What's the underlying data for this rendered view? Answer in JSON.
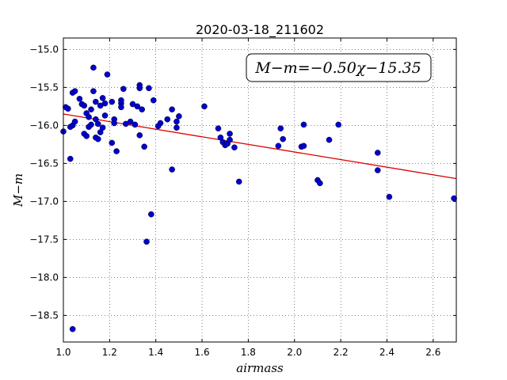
{
  "chart_data": {
    "type": "scatter",
    "title": "2020-03-18_211602",
    "xlabel": "airmass",
    "ylabel": "M−m",
    "annotation": "M−m=−0.50χ−15.35",
    "xlim": [
      1.0,
      2.7
    ],
    "ylim": [
      -18.85,
      -14.85
    ],
    "y_inverted": true,
    "grid": true,
    "x_ticks": [
      1.0,
      1.2,
      1.4,
      1.6,
      1.8,
      2.0,
      2.2,
      2.4,
      2.6
    ],
    "x_tick_labels": [
      "1.0",
      "1.2",
      "1.4",
      "1.6",
      "1.8",
      "2.0",
      "2.2",
      "2.4",
      "2.6"
    ],
    "y_ticks": [
      -15.0,
      -15.5,
      -16.0,
      -16.5,
      -17.0,
      -17.5,
      -18.0,
      -18.5
    ],
    "y_tick_labels": [
      "−15.0",
      "−15.5",
      "−16.0",
      "−16.5",
      "−17.0",
      "−17.5",
      "−18.0",
      "−18.5"
    ],
    "colors": {
      "points": "#0000cc",
      "fit": "#dd0000"
    },
    "fit": {
      "slope": -0.5,
      "intercept": -15.35
    },
    "points": [
      [
        1.0,
        -16.08
      ],
      [
        1.01,
        -15.76
      ],
      [
        1.02,
        -15.78
      ],
      [
        1.03,
        -16.02
      ],
      [
        1.03,
        -16.44
      ],
      [
        1.04,
        -16.0
      ],
      [
        1.04,
        -15.57
      ],
      [
        1.04,
        -18.68
      ],
      [
        1.05,
        -15.55
      ],
      [
        1.05,
        -15.95
      ],
      [
        1.07,
        -15.65
      ],
      [
        1.08,
        -15.72
      ],
      [
        1.09,
        -15.74
      ],
      [
        1.09,
        -16.11
      ],
      [
        1.1,
        -15.84
      ],
      [
        1.1,
        -16.14
      ],
      [
        1.11,
        -15.89
      ],
      [
        1.11,
        -16.02
      ],
      [
        1.12,
        -15.99
      ],
      [
        1.12,
        -15.79
      ],
      [
        1.13,
        -15.55
      ],
      [
        1.13,
        -15.24
      ],
      [
        1.14,
        -15.69
      ],
      [
        1.14,
        -16.16
      ],
      [
        1.14,
        -15.92
      ],
      [
        1.15,
        -15.98
      ],
      [
        1.15,
        -16.18
      ],
      [
        1.16,
        -16.09
      ],
      [
        1.16,
        -15.74
      ],
      [
        1.17,
        -15.64
      ],
      [
        1.17,
        -16.03
      ],
      [
        1.18,
        -15.87
      ],
      [
        1.18,
        -15.71
      ],
      [
        1.19,
        -15.33
      ],
      [
        1.21,
        -16.23
      ],
      [
        1.21,
        -15.69
      ],
      [
        1.22,
        -15.92
      ],
      [
        1.22,
        -15.97
      ],
      [
        1.23,
        -16.34
      ],
      [
        1.25,
        -15.71
      ],
      [
        1.25,
        -15.67
      ],
      [
        1.25,
        -15.76
      ],
      [
        1.26,
        -15.52
      ],
      [
        1.27,
        -15.98
      ],
      [
        1.29,
        -15.95
      ],
      [
        1.3,
        -15.72
      ],
      [
        1.31,
        -15.99
      ],
      [
        1.32,
        -15.75
      ],
      [
        1.33,
        -15.47
      ],
      [
        1.33,
        -15.51
      ],
      [
        1.33,
        -16.13
      ],
      [
        1.34,
        -15.79
      ],
      [
        1.35,
        -16.28
      ],
      [
        1.36,
        -17.53
      ],
      [
        1.37,
        -15.51
      ],
      [
        1.38,
        -17.17
      ],
      [
        1.39,
        -15.67
      ],
      [
        1.41,
        -16.01
      ],
      [
        1.42,
        -15.97
      ],
      [
        1.45,
        -15.92
      ],
      [
        1.47,
        -15.79
      ],
      [
        1.47,
        -16.58
      ],
      [
        1.49,
        -15.95
      ],
      [
        1.49,
        -16.03
      ],
      [
        1.5,
        -15.88
      ],
      [
        1.61,
        -15.75
      ],
      [
        1.67,
        -16.04
      ],
      [
        1.68,
        -16.16
      ],
      [
        1.69,
        -16.22
      ],
      [
        1.7,
        -16.26
      ],
      [
        1.71,
        -16.24
      ],
      [
        1.72,
        -16.11
      ],
      [
        1.72,
        -16.19
      ],
      [
        1.74,
        -16.29
      ],
      [
        1.76,
        -16.74
      ],
      [
        1.93,
        -16.27
      ],
      [
        1.94,
        -16.04
      ],
      [
        1.95,
        -16.18
      ],
      [
        2.03,
        -16.28
      ],
      [
        2.04,
        -15.99
      ],
      [
        2.04,
        -16.27
      ],
      [
        2.1,
        -16.72
      ],
      [
        2.11,
        -16.76
      ],
      [
        2.15,
        -16.19
      ],
      [
        2.19,
        -15.99
      ],
      [
        2.36,
        -16.36
      ],
      [
        2.36,
        -16.59
      ],
      [
        2.41,
        -16.94
      ],
      [
        2.69,
        -16.96
      ]
    ]
  }
}
